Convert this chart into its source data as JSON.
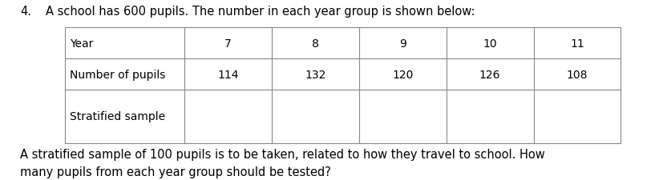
{
  "question_number": "4.",
  "question_text": "A school has 600 pupils. The number in each year group is shown below:",
  "table": {
    "row_labels": [
      "Year",
      "Number of pupils",
      "Stratified sample"
    ],
    "row1_values": [
      "7",
      "8",
      "9",
      "10",
      "11"
    ],
    "row2_values": [
      "114",
      "132",
      "120",
      "126",
      "108"
    ],
    "row3_values": [
      "",
      "",
      "",
      "",
      ""
    ]
  },
  "footer_text": "A stratified sample of 100 pupils is to be taken, related to how they travel to school. How\nmany pupils from each year group should be tested?",
  "bg_color": "#ffffff",
  "text_color": "#000000",
  "table_line_color": "#888888",
  "font_size_question": 10.5,
  "font_size_table": 10,
  "font_size_footer": 10.5
}
